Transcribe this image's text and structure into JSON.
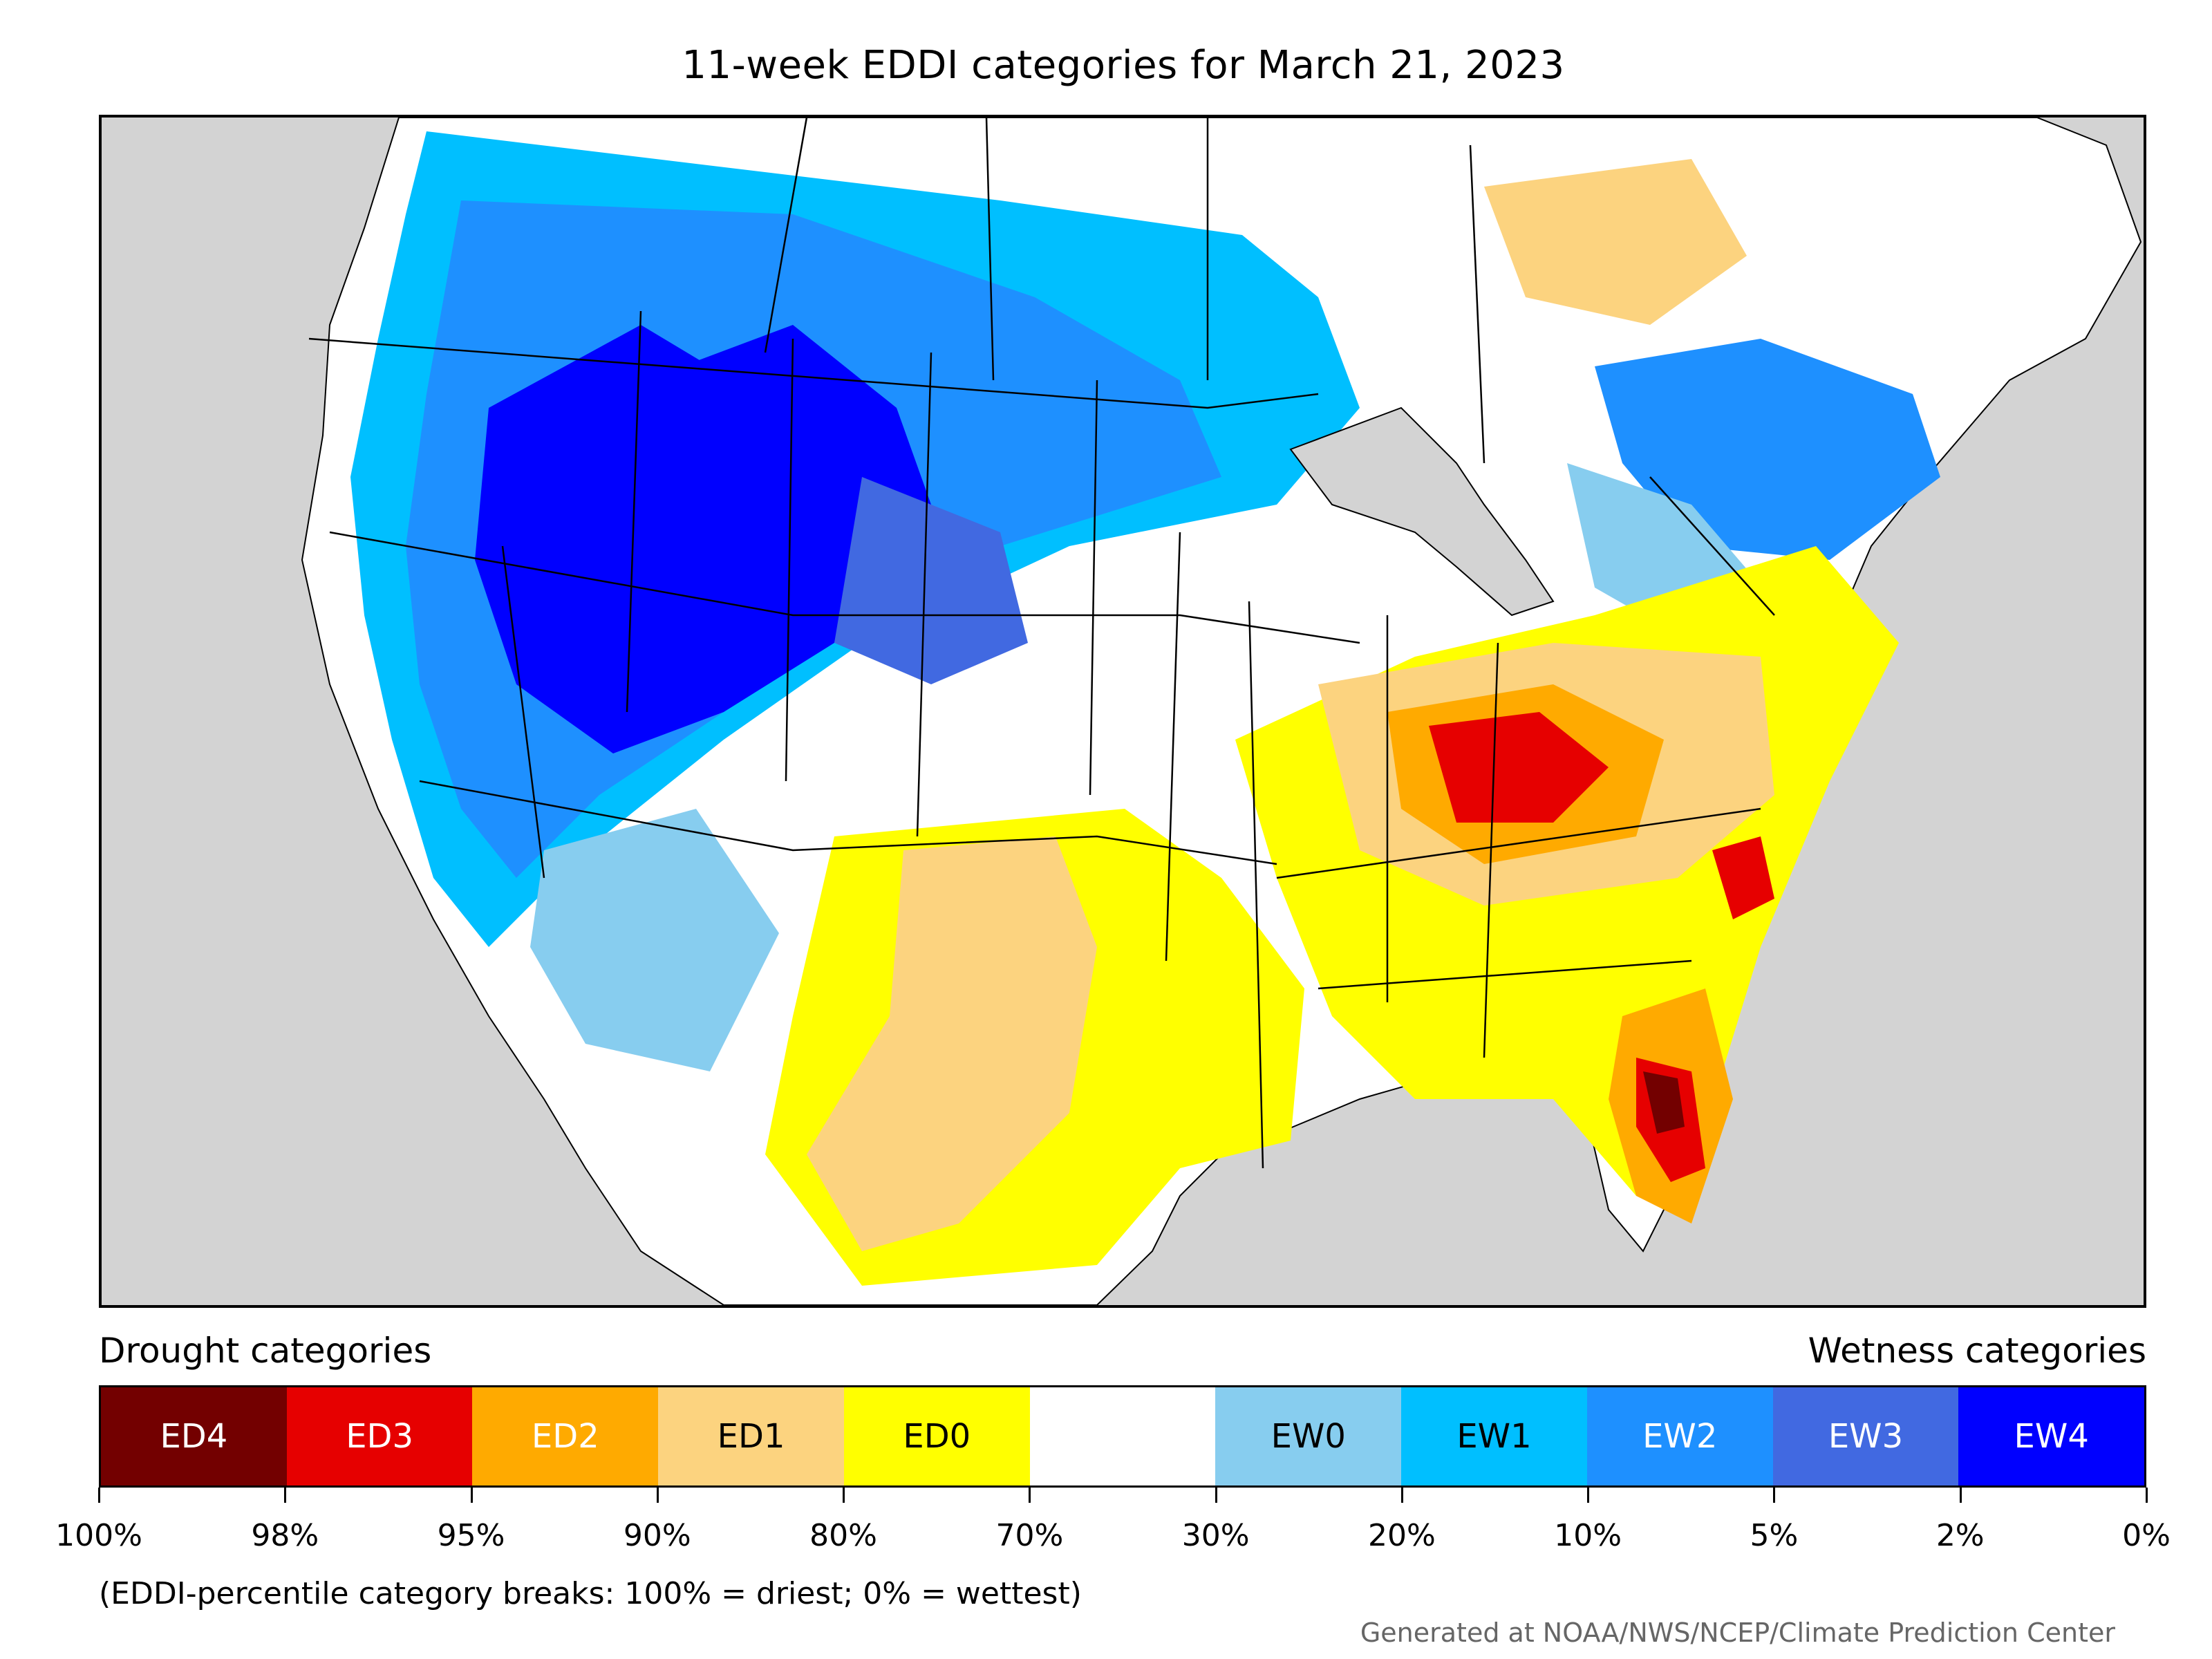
{
  "title": "11-week EDDI categories for March 21, 2023",
  "colors": {
    "land_background": "#d3d3d3",
    "ED4": "#730000",
    "ED3": "#e60000",
    "ED2": "#ffaa00",
    "ED1": "#fcd37f",
    "ED0": "#ffff00",
    "neutral": "#ffffff",
    "EW0": "#87cdef",
    "EW1": "#00bfff",
    "EW2": "#1e90ff",
    "EW3": "#4169e1",
    "EW4": "#0000ff"
  },
  "legend": {
    "drought_heading": "Drought categories",
    "wetness_heading": "Wetness categories",
    "cells": [
      {
        "label": "ED4",
        "color": "#730000",
        "text_color": "#ffffff"
      },
      {
        "label": "ED3",
        "color": "#e60000",
        "text_color": "#ffffff"
      },
      {
        "label": "ED2",
        "color": "#ffaa00",
        "text_color": "#ffffff"
      },
      {
        "label": "ED1",
        "color": "#fcd37f",
        "text_color": "#000000"
      },
      {
        "label": "ED0",
        "color": "#ffff00",
        "text_color": "#000000"
      },
      {
        "label": "",
        "color": "#ffffff",
        "text_color": "#000000"
      },
      {
        "label": "EW0",
        "color": "#87cdef",
        "text_color": "#000000"
      },
      {
        "label": "EW1",
        "color": "#00bfff",
        "text_color": "#000000"
      },
      {
        "label": "EW2",
        "color": "#1e90ff",
        "text_color": "#ffffff"
      },
      {
        "label": "EW3",
        "color": "#4169e1",
        "text_color": "#ffffff"
      },
      {
        "label": "EW4",
        "color": "#0000ff",
        "text_color": "#ffffff"
      }
    ],
    "tick_labels": [
      "100%",
      "98%",
      "95%",
      "90%",
      "80%",
      "70%",
      "30%",
      "20%",
      "10%",
      "5%",
      "2%",
      "0%"
    ]
  },
  "footnote": "(EDDI-percentile category breaks: 100% = driest; 0% = wettest)",
  "credit": "Generated at NOAA/NWS/NCEP/Climate Prediction Center"
}
